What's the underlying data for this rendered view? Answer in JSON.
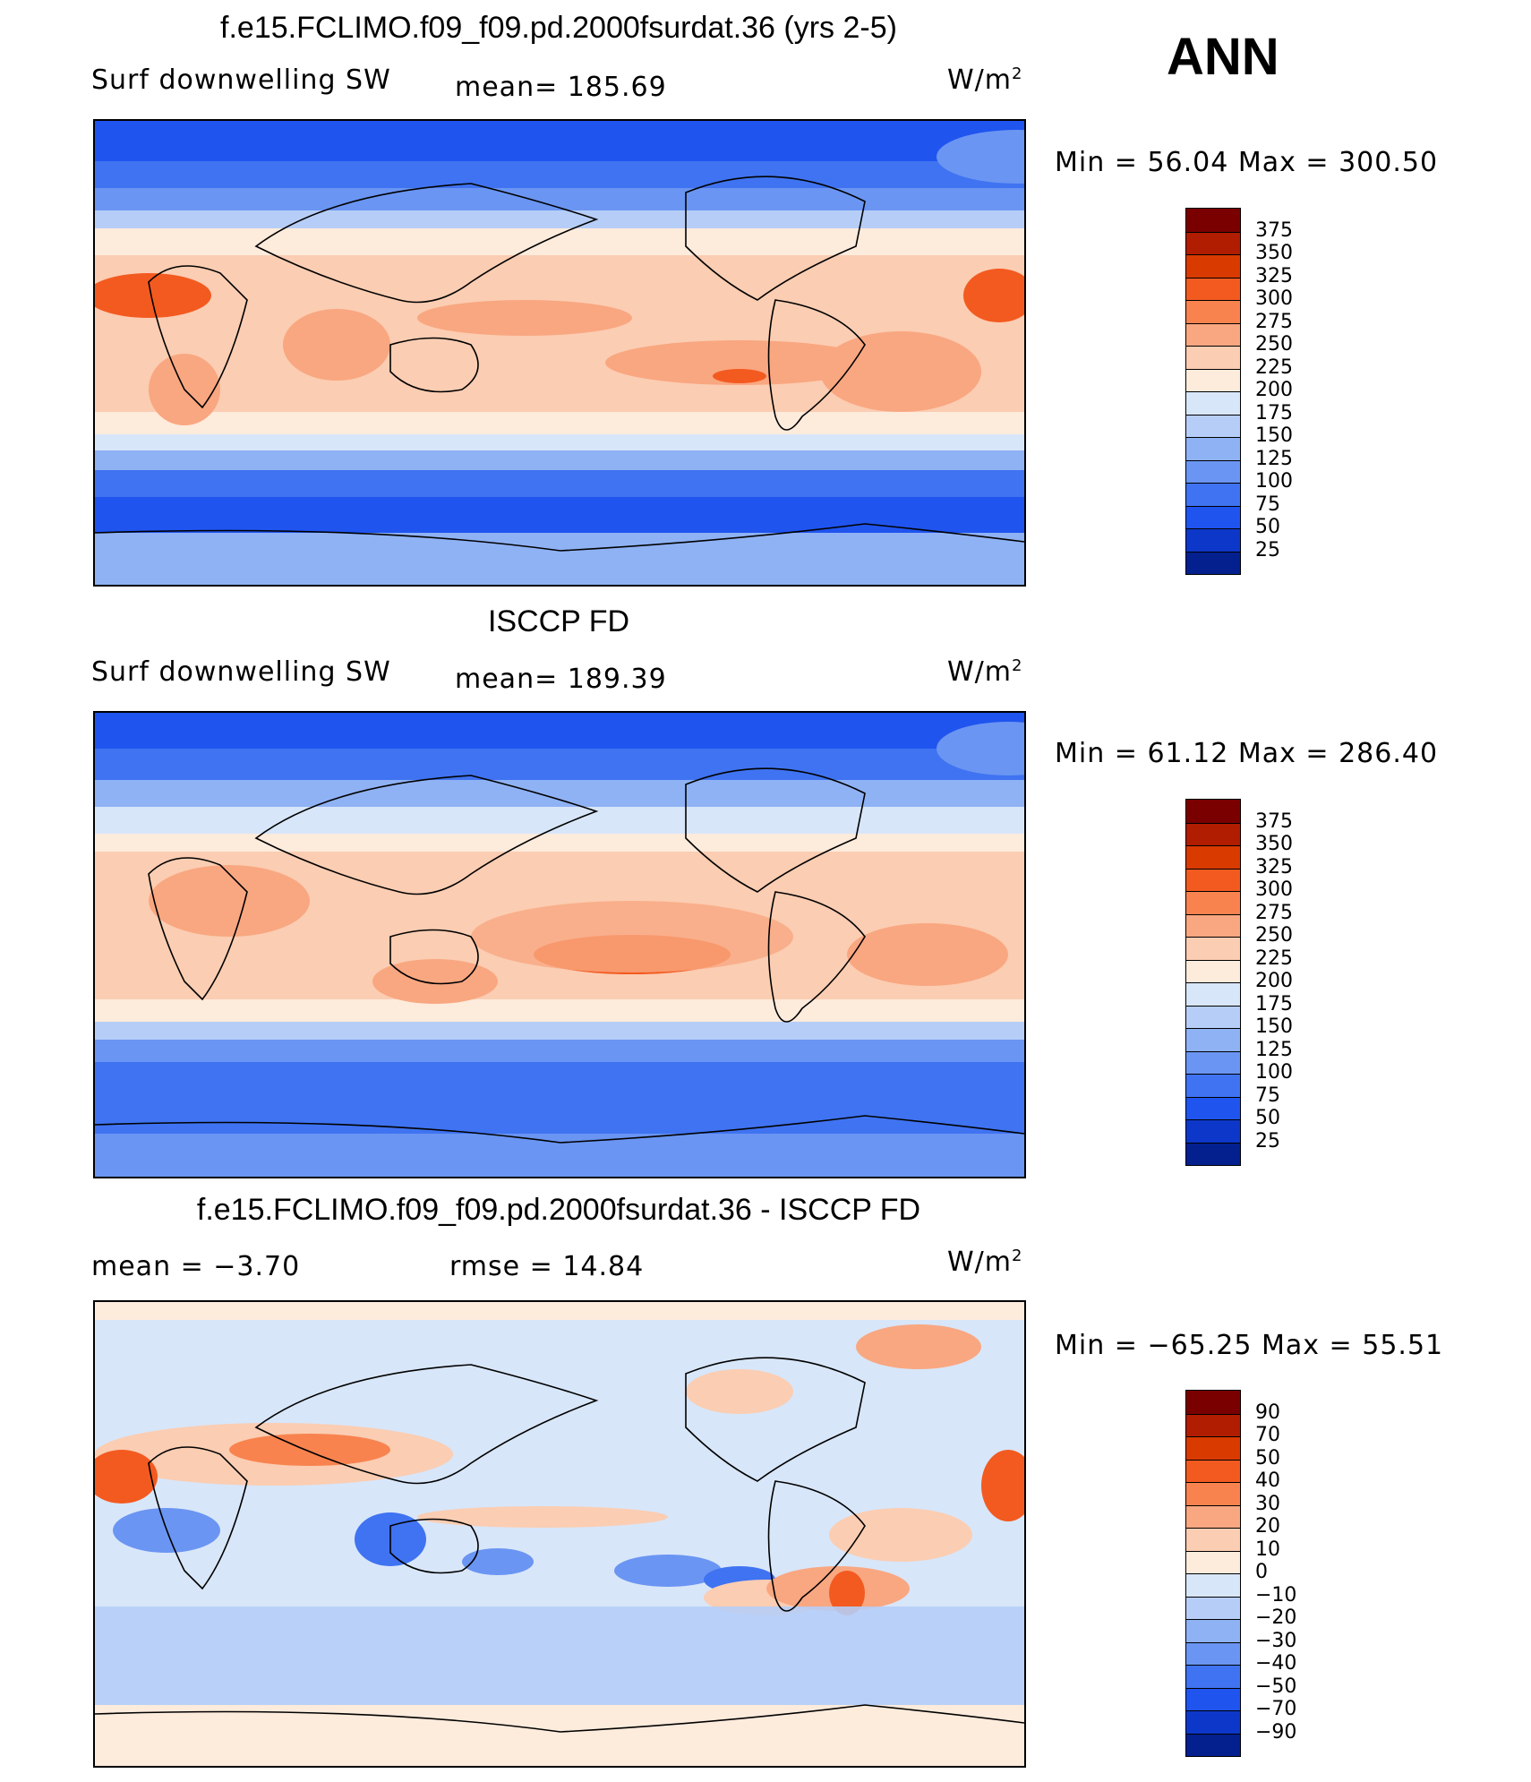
{
  "season": "ANN",
  "panels": [
    {
      "title": "f.e15.FCLIMO.f09_f09.pd.2000fsurdat.36 (yrs 2-5)",
      "left_label": "Surf downwelling SW",
      "mid_label": "mean=  185.69",
      "units": "W/m",
      "units_sup": "2",
      "minmax": "Min =   56.04  Max  =  300.50",
      "kind": "abs"
    },
    {
      "title": "ISCCP FD",
      "left_label": "Surf downwelling SW",
      "mid_label": "mean=  189.39",
      "units": "W/m",
      "units_sup": "2",
      "minmax": "Min =   61.12  Max  =  286.40",
      "kind": "abs"
    },
    {
      "title": "f.e15.FCLIMO.f09_f09.pd.2000fsurdat.36 - ISCCP FD",
      "left_label": "mean  =   −3.70",
      "mid_label": "rmse  =    14.84",
      "units": "W/m",
      "units_sup": "2",
      "minmax": "Min  = −65.25  Max  =   55.51",
      "kind": "diff"
    }
  ],
  "colorbar_abs": {
    "labels": [
      "375",
      "350",
      "325",
      "300",
      "275",
      "250",
      "225",
      "200",
      "175",
      "150",
      "125",
      "100",
      "75",
      "50",
      "25"
    ],
    "colors": [
      "#7a0000",
      "#b01d00",
      "#d93a00",
      "#f35a20",
      "#f8834f",
      "#f9a781",
      "#fbcdb2",
      "#fdebdc",
      "#d8e6f9",
      "#b6cef7",
      "#8fb2f4",
      "#6a95f2",
      "#3f73f1",
      "#1f54ef",
      "#0d37c8",
      "#04208f"
    ]
  },
  "colorbar_diff": {
    "labels": [
      "90",
      "70",
      "50",
      "40",
      "30",
      "20",
      "10",
      "0",
      "−10",
      "−20",
      "−30",
      "−40",
      "−50",
      "−70",
      "−90"
    ],
    "colors": [
      "#7a0000",
      "#b01d00",
      "#d93a00",
      "#f35a20",
      "#f8834f",
      "#f9a781",
      "#fbcdb2",
      "#fdebdc",
      "#d8e6f9",
      "#b6cef7",
      "#8fb2f4",
      "#6a95f2",
      "#3f73f1",
      "#1f54ef",
      "#0d37c8",
      "#04208f"
    ]
  }
}
